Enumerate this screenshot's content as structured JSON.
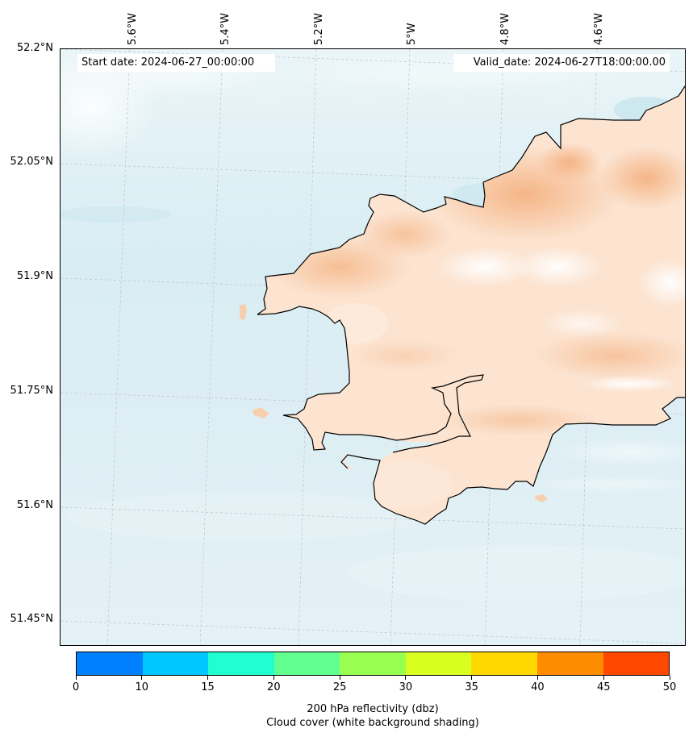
{
  "map": {
    "start_date_label": "Start date: 2024-06-27_00:00:00",
    "valid_date_label": "Valid_date: 2024-06-27T18:00:00.00",
    "longitude_labels": [
      "5.6°W",
      "5.4°W",
      "5.2°W",
      "5°W",
      "4.8°W",
      "4.6°W"
    ],
    "latitude_labels": [
      "52.2°N",
      "52.05°N",
      "51.9°N",
      "51.75°N",
      "51.6°N",
      "51.45°N"
    ],
    "region": "Pembrokeshire coast, south-west Wales",
    "colors": {
      "sea_shading": "#e3f1f6",
      "cloud_clear": "#ffffff",
      "land_low": "#fde6d3",
      "land_mid": "#f8cfad",
      "land_high": "#f4b07e",
      "coastline": "#000000",
      "gridline": "#b9c3c8"
    }
  },
  "colorbar": {
    "ticks": [
      "0",
      "10",
      "15",
      "20",
      "25",
      "30",
      "35",
      "40",
      "45",
      "50"
    ],
    "colors": [
      "#0080ff",
      "#00c8ff",
      "#20ffd0",
      "#60ff90",
      "#98ff50",
      "#d8ff20",
      "#ffd800",
      "#ff8c00",
      "#ff4800"
    ],
    "label_line1": "200 hPa reflectivity (dbz)",
    "label_line2": "Cloud cover (white background shading)"
  }
}
